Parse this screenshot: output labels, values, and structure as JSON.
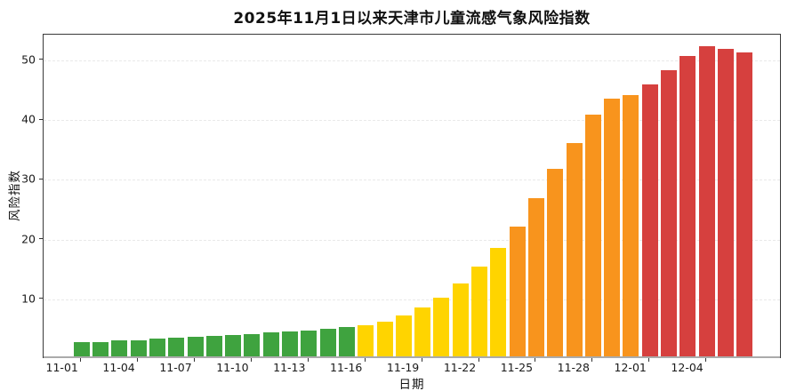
{
  "chart_data": {
    "type": "bar",
    "title": "2025年11月1日以来天津市儿童流感气象风险指数",
    "xlabel": "日期",
    "ylabel": "风险指数",
    "categories": [
      "11-01",
      "11-02",
      "11-03",
      "11-04",
      "11-05",
      "11-06",
      "11-07",
      "11-08",
      "11-09",
      "11-10",
      "11-11",
      "11-12",
      "11-13",
      "11-14",
      "11-15",
      "11-16",
      "11-17",
      "11-18",
      "11-19",
      "11-20",
      "11-21",
      "11-22",
      "11-23",
      "11-24",
      "11-25",
      "11-26",
      "11-27",
      "11-28",
      "11-29",
      "11-30",
      "12-01",
      "12-02",
      "12-03",
      "12-04",
      "12-05",
      "12-06"
    ],
    "values": [
      2.5,
      2.6,
      2.8,
      2.9,
      3.1,
      3.3,
      3.4,
      3.6,
      3.7,
      3.9,
      4.1,
      4.3,
      4.5,
      4.7,
      5.0,
      5.3,
      5.9,
      7.0,
      8.4,
      10.0,
      12.3,
      15.2,
      18.3,
      21.9,
      26.7,
      31.6,
      35.9,
      40.6,
      43.3,
      43.9,
      45.7,
      48.0,
      50.4,
      52.0,
      51.6,
      51.1
    ],
    "color_segments": [
      {
        "from": "11-01",
        "to": "11-15",
        "count": 15,
        "color": "#3FA33F",
        "level": "green"
      },
      {
        "from": "11-16",
        "to": "11-23",
        "count": 8,
        "color": "#FFD400",
        "level": "yellow"
      },
      {
        "from": "11-24",
        "to": "11-30",
        "count": 7,
        "color": "#F8941D",
        "level": "orange"
      },
      {
        "from": "12-01",
        "to": "12-06",
        "count": 6,
        "color": "#D6403E",
        "level": "red"
      }
    ],
    "yticks": [
      10,
      20,
      30,
      40,
      50
    ],
    "xtick_labels": [
      "11-01",
      "11-04",
      "11-07",
      "11-10",
      "11-13",
      "11-16",
      "11-19",
      "11-22",
      "11-25",
      "11-28",
      "12-01",
      "12-04"
    ],
    "xtick_every_n_bars": 3,
    "ylim": [
      0,
      54.3
    ],
    "grid": "horizontal-dashed",
    "legend": "none",
    "background": "#ffffff"
  }
}
